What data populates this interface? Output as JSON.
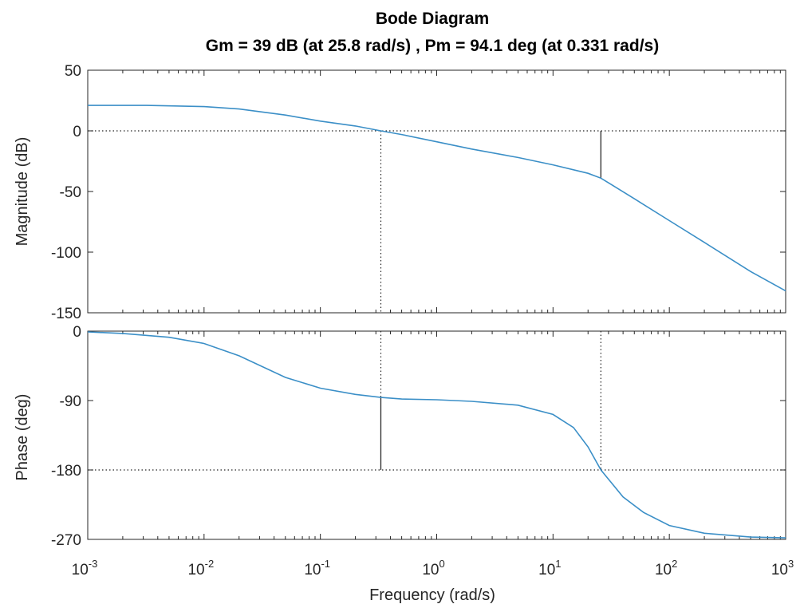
{
  "chart_data": {
    "type": "line",
    "title": "Bode Diagram",
    "subtitle": "Gm = 39 dB (at 25.8 rad/s) ,  Pm = 94.1 deg (at 0.331 rad/s)",
    "xlabel": "Frequency  (rad/s)",
    "xscale": "log",
    "xlim": [
      0.001,
      1000
    ],
    "x_ticks": [
      {
        "base": "10",
        "exp": "-3"
      },
      {
        "base": "10",
        "exp": "-2"
      },
      {
        "base": "10",
        "exp": "-1"
      },
      {
        "base": "10",
        "exp": "0"
      },
      {
        "base": "10",
        "exp": "1"
      },
      {
        "base": "10",
        "exp": "2"
      },
      {
        "base": "10",
        "exp": "3"
      }
    ],
    "line_color": "#3b8fc7",
    "gain_margin": {
      "value_db": 39,
      "frequency": 25.8
    },
    "phase_margin": {
      "value_deg": 94.1,
      "frequency": 0.331
    },
    "magnitude": {
      "ylabel": "Magnitude (dB)",
      "ylim": [
        -150,
        50
      ],
      "yticks": [
        "50",
        "0",
        "-50",
        "-100",
        "-150"
      ],
      "x": [
        0.001,
        0.0032,
        0.01,
        0.02,
        0.05,
        0.1,
        0.2,
        0.331,
        0.5,
        1,
        2,
        5,
        10,
        20,
        25.8,
        50,
        100,
        200,
        500,
        1000
      ],
      "y": [
        21,
        21,
        20,
        18,
        13,
        8,
        4,
        0,
        -3,
        -9,
        -15,
        -22,
        -28,
        -35,
        -39,
        -56,
        -74,
        -92,
        -116,
        -132
      ]
    },
    "phase": {
      "ylabel": "Phase (deg)",
      "ylim": [
        -270,
        0
      ],
      "yticks": [
        "0",
        "-90",
        "-180",
        "-270"
      ],
      "x": [
        0.001,
        0.002,
        0.005,
        0.01,
        0.02,
        0.05,
        0.1,
        0.2,
        0.331,
        0.5,
        1,
        2,
        5,
        10,
        15,
        20,
        25.8,
        40,
        60,
        100,
        200,
        500,
        1000
      ],
      "y": [
        -1,
        -3,
        -8,
        -16,
        -32,
        -60,
        -74,
        -82,
        -86,
        -88,
        -89,
        -91,
        -96,
        -108,
        -125,
        -150,
        -180,
        -215,
        -235,
        -252,
        -262,
        -267,
        -268
      ]
    }
  }
}
